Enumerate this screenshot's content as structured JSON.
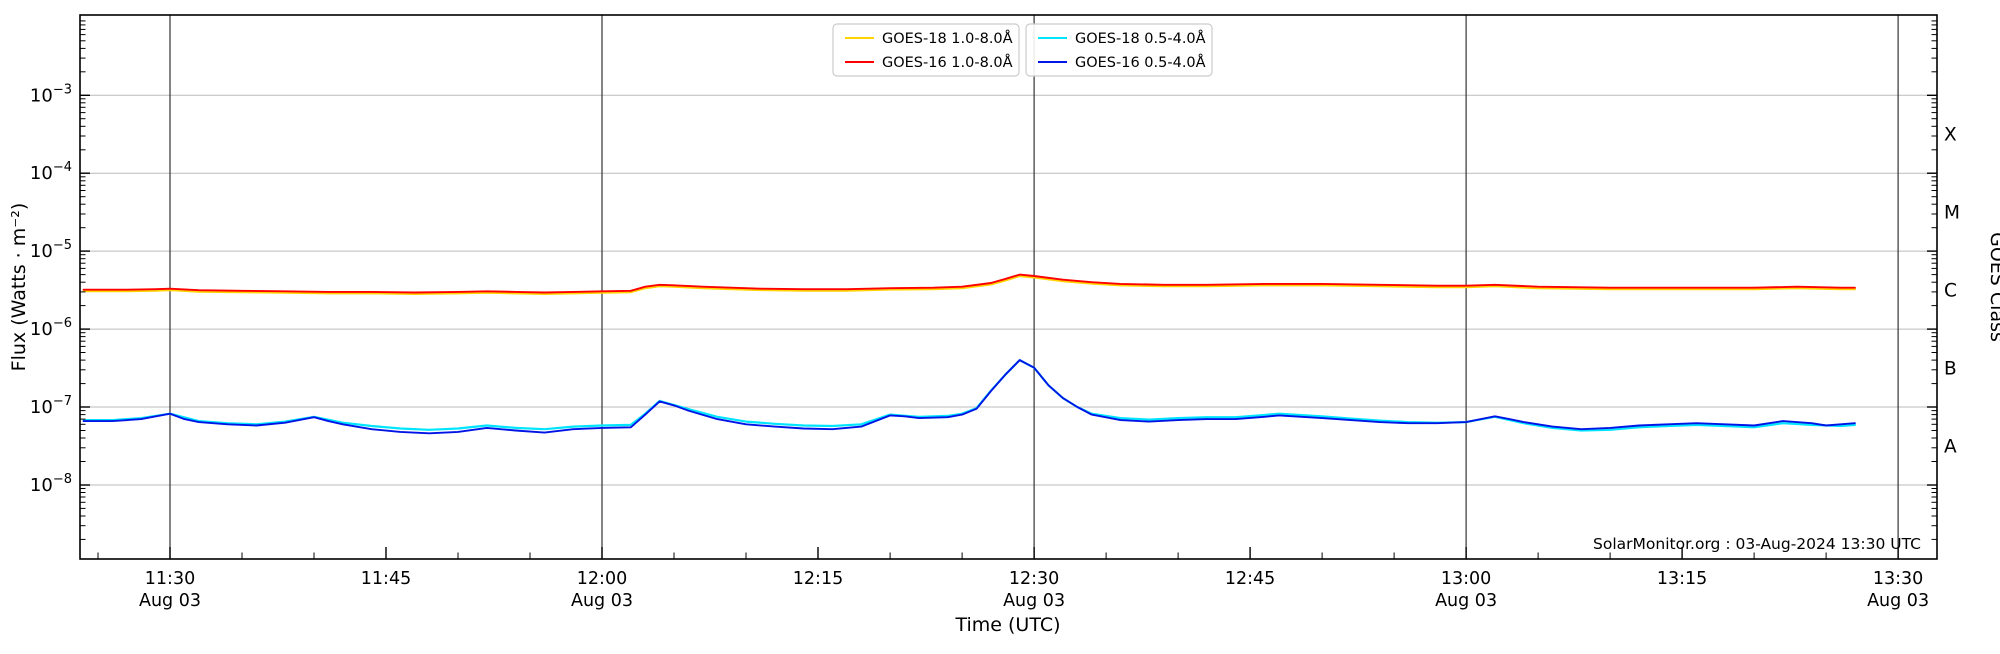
{
  "annotation": "SolarMonitor.org : 03-Aug-2024 13:30 UTC",
  "chart_data": {
    "type": "line",
    "title": "",
    "xlabel": "Time (UTC)",
    "ylabel": "Flux (Watts · m⁻²)",
    "right_axis_label": "GOES Class",
    "x_axis": {
      "unit": "minutes since 00:00 UTC on 03-Aug-2024",
      "range_minutes": [
        683.75,
        812.7
      ],
      "minor_tick_step_minutes": 5,
      "date_label": "Aug 03",
      "major_ticks": [
        {
          "minutes": 690,
          "label": "11:30",
          "show_date": true
        },
        {
          "minutes": 705,
          "label": "11:45",
          "show_date": false
        },
        {
          "minutes": 720,
          "label": "12:00",
          "show_date": true
        },
        {
          "minutes": 735,
          "label": "12:15",
          "show_date": false
        },
        {
          "minutes": 750,
          "label": "12:30",
          "show_date": true
        },
        {
          "minutes": 765,
          "label": "12:45",
          "show_date": false
        },
        {
          "minutes": 780,
          "label": "13:00",
          "show_date": true
        },
        {
          "minutes": 795,
          "label": "13:15",
          "show_date": false
        },
        {
          "minutes": 810,
          "label": "13:30",
          "show_date": true
        }
      ],
      "vline_minutes": [
        690,
        720,
        750,
        780,
        810
      ]
    },
    "y_axis": {
      "scale": "log",
      "range_log10": [
        -8.95,
        -1.97
      ],
      "tick_exponents": [
        -3,
        -4,
        -5,
        -6,
        -7,
        -8
      ],
      "gridlines": true,
      "gridline_color": "#bbbbbb",
      "vline_color": "#333333"
    },
    "goes_class_bands": [
      {
        "label": "X",
        "log10_center": -3.5
      },
      {
        "label": "M",
        "log10_center": -4.5
      },
      {
        "label": "C",
        "log10_center": -5.5
      },
      {
        "label": "B",
        "log10_center": -6.5
      },
      {
        "label": "A",
        "log10_center": -7.5
      }
    ],
    "legend": {
      "boxes": [
        [
          0,
          1
        ],
        [
          2,
          3
        ]
      ],
      "border_color": "#cccccc"
    },
    "series": [
      {
        "name": "GOES-18 1.0-8.0Å",
        "color": "#ffd400",
        "points": [
          [
            684,
            3.07e-06
          ],
          [
            687,
            3.07e-06
          ],
          [
            689,
            3.12e-06
          ],
          [
            690,
            3.17e-06
          ],
          [
            692,
            3.02e-06
          ],
          [
            695,
            2.98e-06
          ],
          [
            698,
            2.93e-06
          ],
          [
            701,
            2.88e-06
          ],
          [
            704,
            2.88e-06
          ],
          [
            707,
            2.83e-06
          ],
          [
            710,
            2.88e-06
          ],
          [
            712,
            2.93e-06
          ],
          [
            714,
            2.88e-06
          ],
          [
            716,
            2.83e-06
          ],
          [
            718,
            2.88e-06
          ],
          [
            720,
            2.93e-06
          ],
          [
            722,
            2.98e-06
          ],
          [
            723,
            3.36e-06
          ],
          [
            724,
            3.55e-06
          ],
          [
            725,
            3.5e-06
          ],
          [
            727,
            3.36e-06
          ],
          [
            729,
            3.26e-06
          ],
          [
            731,
            3.17e-06
          ],
          [
            734,
            3.12e-06
          ],
          [
            737,
            3.12e-06
          ],
          [
            740,
            3.22e-06
          ],
          [
            743,
            3.26e-06
          ],
          [
            745,
            3.36e-06
          ],
          [
            747,
            3.74e-06
          ],
          [
            748,
            4.22e-06
          ],
          [
            749,
            4.8e-06
          ],
          [
            750,
            4.61e-06
          ],
          [
            752,
            4.13e-06
          ],
          [
            754,
            3.84e-06
          ],
          [
            756,
            3.65e-06
          ],
          [
            759,
            3.55e-06
          ],
          [
            762,
            3.55e-06
          ],
          [
            766,
            3.65e-06
          ],
          [
            770,
            3.65e-06
          ],
          [
            774,
            3.55e-06
          ],
          [
            778,
            3.46e-06
          ],
          [
            780,
            3.46e-06
          ],
          [
            782,
            3.55e-06
          ],
          [
            785,
            3.36e-06
          ],
          [
            790,
            3.26e-06
          ],
          [
            795,
            3.26e-06
          ],
          [
            800,
            3.26e-06
          ],
          [
            803,
            3.36e-06
          ],
          [
            806,
            3.26e-06
          ],
          [
            807,
            3.26e-06
          ]
        ]
      },
      {
        "name": "GOES-16 1.0-8.0Å",
        "color": "#ff0000",
        "points": [
          [
            684,
            3.2e-06
          ],
          [
            687,
            3.2e-06
          ],
          [
            689,
            3.25e-06
          ],
          [
            690,
            3.3e-06
          ],
          [
            692,
            3.15e-06
          ],
          [
            695,
            3.1e-06
          ],
          [
            698,
            3.05e-06
          ],
          [
            701,
            3e-06
          ],
          [
            704,
            3e-06
          ],
          [
            707,
            2.95e-06
          ],
          [
            710,
            3e-06
          ],
          [
            712,
            3.05e-06
          ],
          [
            714,
            3e-06
          ],
          [
            716,
            2.95e-06
          ],
          [
            718,
            3e-06
          ],
          [
            720,
            3.05e-06
          ],
          [
            722,
            3.1e-06
          ],
          [
            723,
            3.5e-06
          ],
          [
            724,
            3.7e-06
          ],
          [
            725,
            3.65e-06
          ],
          [
            727,
            3.5e-06
          ],
          [
            729,
            3.4e-06
          ],
          [
            731,
            3.3e-06
          ],
          [
            734,
            3.25e-06
          ],
          [
            737,
            3.25e-06
          ],
          [
            740,
            3.35e-06
          ],
          [
            743,
            3.4e-06
          ],
          [
            745,
            3.5e-06
          ],
          [
            747,
            3.9e-06
          ],
          [
            748,
            4.4e-06
          ],
          [
            749,
            5e-06
          ],
          [
            750,
            4.8e-06
          ],
          [
            752,
            4.3e-06
          ],
          [
            754,
            4e-06
          ],
          [
            756,
            3.8e-06
          ],
          [
            759,
            3.7e-06
          ],
          [
            762,
            3.7e-06
          ],
          [
            766,
            3.8e-06
          ],
          [
            770,
            3.8e-06
          ],
          [
            774,
            3.7e-06
          ],
          [
            778,
            3.6e-06
          ],
          [
            780,
            3.6e-06
          ],
          [
            782,
            3.7e-06
          ],
          [
            785,
            3.5e-06
          ],
          [
            790,
            3.4e-06
          ],
          [
            795,
            3.4e-06
          ],
          [
            800,
            3.4e-06
          ],
          [
            803,
            3.5e-06
          ],
          [
            806,
            3.4e-06
          ],
          [
            807,
            3.4e-06
          ]
        ]
      },
      {
        "name": "GOES-18 0.5-4.0Å",
        "color": "#00e5ff",
        "points": [
          [
            684,
            6.8e-08
          ],
          [
            686,
            6.8e-08
          ],
          [
            688,
            7.2e-08
          ],
          [
            690,
            8.2e-08
          ],
          [
            692,
            6.6e-08
          ],
          [
            694,
            6.2e-08
          ],
          [
            696,
            6e-08
          ],
          [
            698,
            6.5e-08
          ],
          [
            700,
            7.5e-08
          ],
          [
            702,
            6.3e-08
          ],
          [
            704,
            5.7e-08
          ],
          [
            706,
            5.3e-08
          ],
          [
            708,
            5.1e-08
          ],
          [
            710,
            5.3e-08
          ],
          [
            712,
            5.8e-08
          ],
          [
            714,
            5.4e-08
          ],
          [
            716,
            5.2e-08
          ],
          [
            718,
            5.6e-08
          ],
          [
            720,
            5.8e-08
          ],
          [
            722,
            5.9e-08
          ],
          [
            723,
            8.2e-08
          ],
          [
            724,
            1.2e-07
          ],
          [
            726,
            9.4e-08
          ],
          [
            728,
            7.5e-08
          ],
          [
            730,
            6.5e-08
          ],
          [
            732,
            6.1e-08
          ],
          [
            734,
            5.8e-08
          ],
          [
            736,
            5.7e-08
          ],
          [
            738,
            6e-08
          ],
          [
            740,
            8e-08
          ],
          [
            742,
            7.5e-08
          ],
          [
            744,
            7.7e-08
          ],
          [
            745,
            8.2e-08
          ],
          [
            746,
            9.7e-08
          ],
          [
            747,
            1.62e-07
          ],
          [
            748,
            2.6e-07
          ],
          [
            749,
            4e-07
          ],
          [
            750,
            3.2e-07
          ],
          [
            751,
            1.9e-07
          ],
          [
            752,
            1.3e-07
          ],
          [
            753,
            1e-07
          ],
          [
            754,
            8.2e-08
          ],
          [
            756,
            7.2e-08
          ],
          [
            758,
            6.9e-08
          ],
          [
            760,
            7.2e-08
          ],
          [
            762,
            7.4e-08
          ],
          [
            764,
            7.4e-08
          ],
          [
            766,
            7.9e-08
          ],
          [
            767,
            8.2e-08
          ],
          [
            768,
            8e-08
          ],
          [
            770,
            7.6e-08
          ],
          [
            772,
            7.1e-08
          ],
          [
            774,
            6.7e-08
          ],
          [
            776,
            6.4e-08
          ],
          [
            778,
            6.3e-08
          ],
          [
            780,
            6.4e-08
          ],
          [
            782,
            7.5e-08
          ],
          [
            784,
            6.2e-08
          ],
          [
            786,
            5.4e-08
          ],
          [
            788,
            5e-08
          ],
          [
            790,
            5.1e-08
          ],
          [
            792,
            5.5e-08
          ],
          [
            794,
            5.7e-08
          ],
          [
            796,
            5.9e-08
          ],
          [
            798,
            5.7e-08
          ],
          [
            800,
            5.5e-08
          ],
          [
            802,
            6.2e-08
          ],
          [
            804,
            5.9e-08
          ],
          [
            806,
            5.7e-08
          ],
          [
            807,
            5.9e-08
          ]
        ]
      },
      {
        "name": "GOES-16 0.5-4.0Å",
        "color": "#0014e6",
        "points": [
          [
            684,
            6.6e-08
          ],
          [
            686,
            6.6e-08
          ],
          [
            688,
            7e-08
          ],
          [
            690,
            8.2e-08
          ],
          [
            691,
            7e-08
          ],
          [
            692,
            6.4e-08
          ],
          [
            694,
            6e-08
          ],
          [
            696,
            5.8e-08
          ],
          [
            698,
            6.3e-08
          ],
          [
            700,
            7.4e-08
          ],
          [
            701,
            6.6e-08
          ],
          [
            702,
            6e-08
          ],
          [
            704,
            5.2e-08
          ],
          [
            706,
            4.8e-08
          ],
          [
            708,
            4.6e-08
          ],
          [
            710,
            4.8e-08
          ],
          [
            712,
            5.4e-08
          ],
          [
            714,
            5e-08
          ],
          [
            716,
            4.7e-08
          ],
          [
            718,
            5.2e-08
          ],
          [
            720,
            5.4e-08
          ],
          [
            722,
            5.5e-08
          ],
          [
            723,
            8e-08
          ],
          [
            724,
            1.18e-07
          ],
          [
            725,
            1.05e-07
          ],
          [
            726,
            9e-08
          ],
          [
            728,
            7e-08
          ],
          [
            730,
            6e-08
          ],
          [
            732,
            5.6e-08
          ],
          [
            734,
            5.3e-08
          ],
          [
            736,
            5.2e-08
          ],
          [
            738,
            5.6e-08
          ],
          [
            740,
            7.8e-08
          ],
          [
            741,
            7.6e-08
          ],
          [
            742,
            7.2e-08
          ],
          [
            744,
            7.4e-08
          ],
          [
            745,
            8e-08
          ],
          [
            746,
            9.5e-08
          ],
          [
            747,
            1.6e-07
          ],
          [
            748,
            2.6e-07
          ],
          [
            749,
            4e-07
          ],
          [
            750,
            3.2e-07
          ],
          [
            751,
            1.9e-07
          ],
          [
            752,
            1.3e-07
          ],
          [
            753,
            1e-07
          ],
          [
            754,
            8e-08
          ],
          [
            756,
            6.8e-08
          ],
          [
            758,
            6.5e-08
          ],
          [
            760,
            6.8e-08
          ],
          [
            762,
            7e-08
          ],
          [
            764,
            7e-08
          ],
          [
            766,
            7.5e-08
          ],
          [
            767,
            7.8e-08
          ],
          [
            768,
            7.6e-08
          ],
          [
            770,
            7.2e-08
          ],
          [
            772,
            6.8e-08
          ],
          [
            774,
            6.4e-08
          ],
          [
            776,
            6.2e-08
          ],
          [
            778,
            6.2e-08
          ],
          [
            780,
            6.4e-08
          ],
          [
            782,
            7.6e-08
          ],
          [
            783,
            7e-08
          ],
          [
            784,
            6.4e-08
          ],
          [
            786,
            5.6e-08
          ],
          [
            788,
            5.2e-08
          ],
          [
            790,
            5.4e-08
          ],
          [
            792,
            5.8e-08
          ],
          [
            794,
            6e-08
          ],
          [
            796,
            6.2e-08
          ],
          [
            798,
            6e-08
          ],
          [
            800,
            5.8e-08
          ],
          [
            802,
            6.6e-08
          ],
          [
            804,
            6.2e-08
          ],
          [
            805,
            5.8e-08
          ],
          [
            806,
            6e-08
          ],
          [
            807,
            6.2e-08
          ]
        ]
      }
    ]
  }
}
